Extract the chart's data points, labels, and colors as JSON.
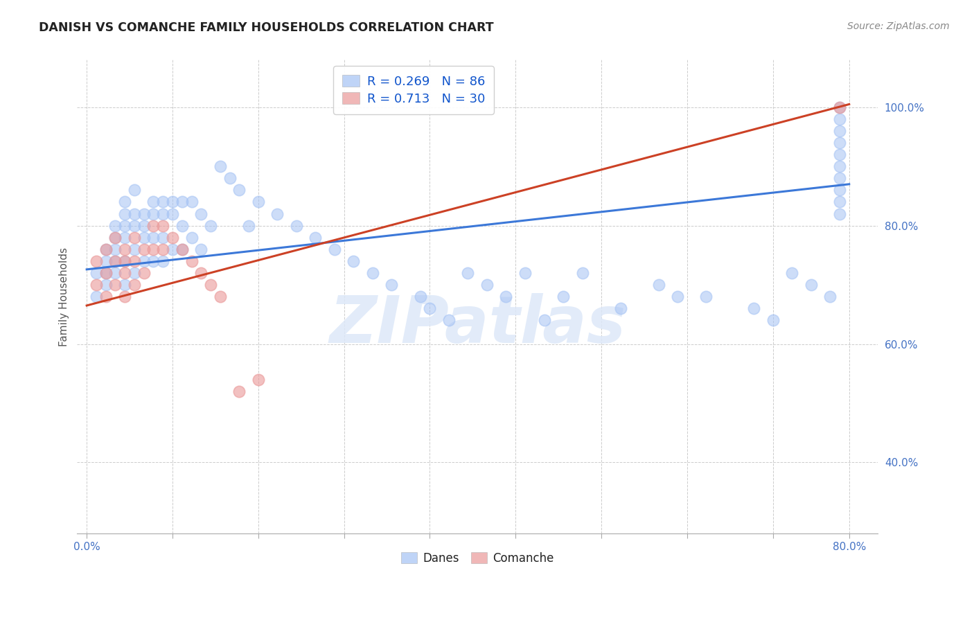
{
  "title": "DANISH VS COMANCHE FAMILY HOUSEHOLDS CORRELATION CHART",
  "source": "Source: ZipAtlas.com",
  "ylabel": "Family Households",
  "ytick_labels": [
    "40.0%",
    "60.0%",
    "80.0%",
    "100.0%"
  ],
  "ytick_values": [
    0.4,
    0.6,
    0.8,
    1.0
  ],
  "xtick_labels": [
    "0.0%",
    "",
    "",
    "",
    "",
    "",
    "",
    "",
    "",
    "80.0%"
  ],
  "xtick_values": [
    0.0,
    0.09,
    0.18,
    0.27,
    0.36,
    0.45,
    0.54,
    0.63,
    0.72,
    0.8
  ],
  "xlim": [
    -0.01,
    0.83
  ],
  "ylim": [
    0.28,
    1.08
  ],
  "legend_entries": [
    {
      "label": "R = 0.269   N = 86",
      "color": "#a4c2f4"
    },
    {
      "label": "R = 0.713   N = 30",
      "color": "#ea9999"
    }
  ],
  "bottom_legend": [
    "Danes",
    "Comanche"
  ],
  "watermark": "ZIPatlas",
  "danes_color": "#a4c2f4",
  "comanche_color": "#ea9999",
  "danes_line_color": "#3c78d8",
  "comanche_line_color": "#cc4125",
  "background_color": "#ffffff",
  "danes_x": [
    0.01,
    0.01,
    0.02,
    0.02,
    0.02,
    0.02,
    0.03,
    0.03,
    0.03,
    0.03,
    0.03,
    0.04,
    0.04,
    0.04,
    0.04,
    0.04,
    0.04,
    0.05,
    0.05,
    0.05,
    0.05,
    0.05,
    0.06,
    0.06,
    0.06,
    0.06,
    0.07,
    0.07,
    0.07,
    0.07,
    0.08,
    0.08,
    0.08,
    0.08,
    0.09,
    0.09,
    0.09,
    0.1,
    0.1,
    0.1,
    0.11,
    0.11,
    0.12,
    0.12,
    0.13,
    0.14,
    0.15,
    0.16,
    0.17,
    0.18,
    0.2,
    0.22,
    0.24,
    0.26,
    0.28,
    0.3,
    0.32,
    0.35,
    0.36,
    0.38,
    0.4,
    0.42,
    0.44,
    0.46,
    0.48,
    0.5,
    0.52,
    0.56,
    0.6,
    0.62,
    0.65,
    0.7,
    0.72,
    0.74,
    0.76,
    0.78,
    0.79,
    0.79,
    0.79,
    0.79,
    0.79,
    0.79,
    0.79,
    0.79,
    0.79,
    0.79
  ],
  "danes_y": [
    0.72,
    0.68,
    0.76,
    0.74,
    0.72,
    0.7,
    0.8,
    0.78,
    0.76,
    0.74,
    0.72,
    0.84,
    0.82,
    0.8,
    0.78,
    0.74,
    0.7,
    0.86,
    0.82,
    0.8,
    0.76,
    0.72,
    0.82,
    0.8,
    0.78,
    0.74,
    0.84,
    0.82,
    0.78,
    0.74,
    0.84,
    0.82,
    0.78,
    0.74,
    0.84,
    0.82,
    0.76,
    0.84,
    0.8,
    0.76,
    0.84,
    0.78,
    0.82,
    0.76,
    0.8,
    0.9,
    0.88,
    0.86,
    0.8,
    0.84,
    0.82,
    0.8,
    0.78,
    0.76,
    0.74,
    0.72,
    0.7,
    0.68,
    0.66,
    0.64,
    0.72,
    0.7,
    0.68,
    0.72,
    0.64,
    0.68,
    0.72,
    0.66,
    0.7,
    0.68,
    0.68,
    0.66,
    0.64,
    0.72,
    0.7,
    0.68,
    1.0,
    0.98,
    0.96,
    0.94,
    0.92,
    0.9,
    0.88,
    0.86,
    0.84,
    0.82
  ],
  "comanche_x": [
    0.01,
    0.01,
    0.02,
    0.02,
    0.02,
    0.03,
    0.03,
    0.03,
    0.04,
    0.04,
    0.04,
    0.04,
    0.05,
    0.05,
    0.05,
    0.06,
    0.06,
    0.07,
    0.07,
    0.08,
    0.08,
    0.09,
    0.1,
    0.11,
    0.12,
    0.13,
    0.14,
    0.16,
    0.18,
    0.79
  ],
  "comanche_y": [
    0.74,
    0.7,
    0.76,
    0.72,
    0.68,
    0.78,
    0.74,
    0.7,
    0.76,
    0.74,
    0.72,
    0.68,
    0.78,
    0.74,
    0.7,
    0.76,
    0.72,
    0.8,
    0.76,
    0.8,
    0.76,
    0.78,
    0.76,
    0.74,
    0.72,
    0.7,
    0.68,
    0.52,
    0.54,
    1.0
  ],
  "danes_line_x": [
    0.0,
    0.8
  ],
  "danes_line_y": [
    0.726,
    0.87
  ],
  "comanche_line_x": [
    0.0,
    0.8
  ],
  "comanche_line_y": [
    0.665,
    1.005
  ]
}
